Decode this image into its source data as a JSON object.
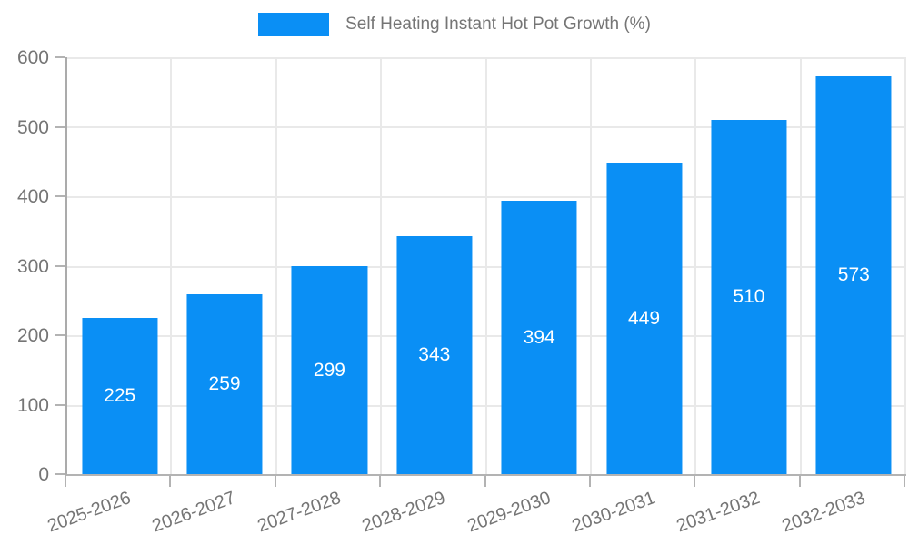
{
  "legend": {
    "label": "Self Heating Instant Hot Pot Growth (%)"
  },
  "chart_data": {
    "type": "bar",
    "title": "Self Heating Instant Hot Pot Growth (%)",
    "series_name": "Self Heating Instant Hot Pot Growth (%)",
    "categories": [
      "2025-2026",
      "2026-2027",
      "2027-2028",
      "2028-2029",
      "2029-2030",
      "2030-2031",
      "2031-2032",
      "2032-2033"
    ],
    "values": [
      225,
      259,
      299,
      343,
      394,
      449,
      510,
      573
    ],
    "value_labels": [
      "225",
      "259",
      "299",
      "343",
      "394",
      "449",
      "510",
      "573"
    ],
    "xlabel": "",
    "ylabel": "",
    "ylim": [
      0,
      600
    ],
    "yticks": [
      0,
      100,
      200,
      300,
      400,
      500,
      600
    ],
    "grid": true,
    "legend_position": "top",
    "x_label_rotation_deg": -20,
    "colors": {
      "bar": "#0A8FF5",
      "value_label": "#ffffff",
      "axis_line": "#b3b3b3",
      "grid_line": "#e9e9e9",
      "tick_label": "#757575",
      "legend_text": "#757575",
      "background": "#ffffff"
    }
  }
}
